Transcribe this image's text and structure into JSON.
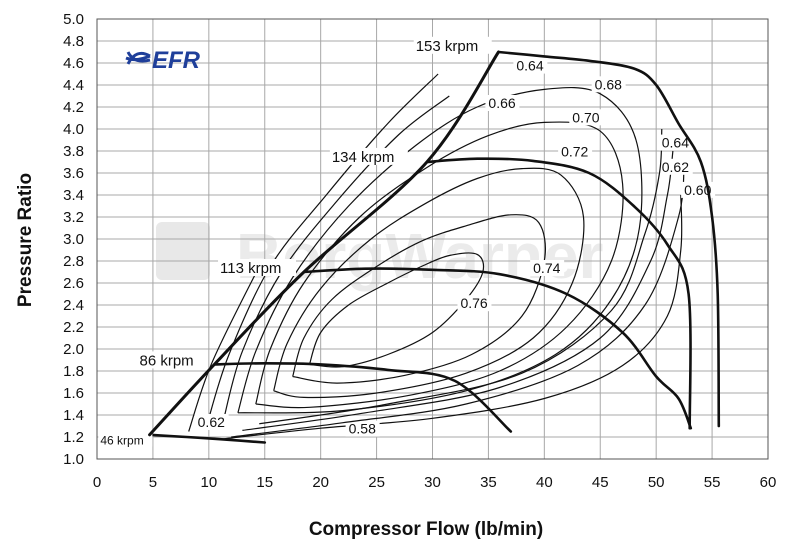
{
  "chart_data": {
    "type": "line",
    "title": "",
    "xlabel": "Compressor Flow (lb/min)",
    "ylabel": "Pressure Ratio",
    "xlim": [
      0,
      60
    ],
    "ylim": [
      1.0,
      5.0
    ],
    "x_ticks": [
      0,
      5,
      10,
      15,
      20,
      25,
      30,
      35,
      40,
      45,
      50,
      55,
      60
    ],
    "y_ticks": [
      1.0,
      1.2,
      1.4,
      1.6,
      1.8,
      2.0,
      2.2,
      2.4,
      2.6,
      2.8,
      3.0,
      3.2,
      3.4,
      3.6,
      3.8,
      4.0,
      4.2,
      4.4,
      4.6,
      4.8,
      5.0
    ],
    "grid": true,
    "logo_text": "EFR",
    "watermark_text": "BorgWarner",
    "surge_line": [
      [
        4.7,
        1.22
      ],
      [
        10.5,
        1.86
      ],
      [
        18.5,
        2.7
      ],
      [
        29.5,
        3.7
      ],
      [
        35.9,
        4.7
      ]
    ],
    "speed_lines": [
      {
        "label": "46 krpm",
        "label_x": 0.3,
        "label_y": 1.14,
        "points": [
          [
            4.7,
            1.22
          ],
          [
            8,
            1.2
          ],
          [
            11,
            1.18
          ],
          [
            15,
            1.15
          ]
        ]
      },
      {
        "label": "86 krpm",
        "label_x": 3.8,
        "label_y": 1.86,
        "points": [
          [
            10.5,
            1.86
          ],
          [
            15,
            1.87
          ],
          [
            20,
            1.86
          ],
          [
            26,
            1.81
          ],
          [
            32,
            1.71
          ],
          [
            37,
            1.25
          ]
        ]
      },
      {
        "label": "113 krpm",
        "label_x": 11,
        "label_y": 2.7,
        "points": [
          [
            18.5,
            2.7
          ],
          [
            24,
            2.73
          ],
          [
            30,
            2.72
          ],
          [
            36,
            2.68
          ],
          [
            42,
            2.5
          ],
          [
            47,
            2.15
          ],
          [
            50,
            1.75
          ],
          [
            52,
            1.55
          ],
          [
            53.1,
            1.28
          ]
        ]
      },
      {
        "label": "134 krpm",
        "label_x": 21,
        "label_y": 3.71,
        "points": [
          [
            29.5,
            3.7
          ],
          [
            34,
            3.73
          ],
          [
            39,
            3.71
          ],
          [
            44,
            3.6
          ],
          [
            48,
            3.3
          ],
          [
            51,
            2.95
          ],
          [
            52.9,
            2.5
          ],
          [
            53,
            1.28
          ]
        ]
      },
      {
        "label": "153 krpm",
        "label_x": 28.5,
        "label_y": 4.72,
        "points": [
          [
            35.9,
            4.7
          ],
          [
            40,
            4.66
          ],
          [
            44,
            4.62
          ],
          [
            48,
            4.55
          ],
          [
            50,
            4.4
          ],
          [
            52,
            4.05
          ],
          [
            54,
            3.7
          ],
          [
            55,
            3.2
          ],
          [
            55.5,
            2.5
          ],
          [
            55.6,
            1.3
          ]
        ]
      }
    ],
    "efficiency_islands": [
      {
        "label": "0.76",
        "label_x": 32.5,
        "label_y": 2.38,
        "points": [
          [
            19,
            1.86
          ],
          [
            20,
            2.15
          ],
          [
            22.5,
            2.4
          ],
          [
            26,
            2.6
          ],
          [
            29,
            2.75
          ],
          [
            31.5,
            2.85
          ],
          [
            34,
            2.86
          ],
          [
            34.5,
            2.7
          ],
          [
            33,
            2.45
          ],
          [
            30,
            2.15
          ],
          [
            26,
            1.95
          ],
          [
            22,
            1.84
          ],
          [
            19,
            1.86
          ]
        ]
      },
      {
        "label": "0.74",
        "label_x": 39,
        "label_y": 2.7,
        "points": [
          [
            17.5,
            1.75
          ],
          [
            18.5,
            2.1
          ],
          [
            21,
            2.45
          ],
          [
            25,
            2.75
          ],
          [
            29,
            2.98
          ],
          [
            33,
            3.12
          ],
          [
            37,
            3.22
          ],
          [
            39.5,
            3.15
          ],
          [
            40,
            2.8
          ],
          [
            38,
            2.3
          ],
          [
            33.5,
            1.95
          ],
          [
            27.5,
            1.76
          ],
          [
            21.5,
            1.69
          ],
          [
            17.5,
            1.75
          ]
        ]
      },
      {
        "label": "0.72",
        "label_x": 41.5,
        "label_y": 3.76,
        "points": [
          [
            15.8,
            1.62
          ],
          [
            17,
            2.05
          ],
          [
            20,
            2.55
          ],
          [
            24.5,
            3.0
          ],
          [
            29.5,
            3.33
          ],
          [
            34,
            3.55
          ],
          [
            38,
            3.64
          ],
          [
            41.5,
            3.58
          ],
          [
            43.5,
            3.2
          ],
          [
            42.5,
            2.6
          ],
          [
            39,
            2.1
          ],
          [
            33,
            1.78
          ],
          [
            25,
            1.6
          ],
          [
            18.5,
            1.56
          ],
          [
            15.8,
            1.62
          ]
        ]
      },
      {
        "label": "0.70",
        "label_x": 42.5,
        "label_y": 4.07,
        "points": [
          [
            14.2,
            1.5
          ],
          [
            15.5,
            2.0
          ],
          [
            18.5,
            2.6
          ],
          [
            23.5,
            3.2
          ],
          [
            29.5,
            3.65
          ],
          [
            35,
            3.94
          ],
          [
            40,
            4.06
          ],
          [
            45,
            3.98
          ],
          [
            47,
            3.5
          ],
          [
            46,
            2.8
          ],
          [
            42,
            2.2
          ],
          [
            36,
            1.8
          ],
          [
            28,
            1.58
          ],
          [
            19,
            1.47
          ],
          [
            14.2,
            1.5
          ]
        ]
      },
      {
        "label": "0.68",
        "label_x": 44.5,
        "label_y": 4.37,
        "points": [
          [
            12.6,
            1.42
          ],
          [
            14.2,
            1.98
          ],
          [
            17.5,
            2.65
          ],
          [
            22.5,
            3.3
          ],
          [
            28.5,
            3.85
          ],
          [
            34,
            4.2
          ],
          [
            40,
            4.36
          ],
          [
            45,
            4.32
          ],
          [
            48.2,
            3.9
          ],
          [
            48.5,
            3.1
          ],
          [
            46,
            2.45
          ],
          [
            41,
            1.95
          ],
          [
            33,
            1.62
          ],
          [
            22,
            1.44
          ],
          [
            12.6,
            1.42
          ]
        ]
      },
      {
        "label": "0.66",
        "label_x": 35,
        "label_y": 4.2,
        "points": [
          [
            11.3,
            1.35
          ],
          [
            13,
            1.98
          ],
          [
            16.5,
            2.7
          ],
          [
            21.5,
            3.35
          ],
          [
            27,
            3.95
          ],
          [
            31.5,
            4.3
          ]
        ]
      },
      {
        "label": "0.64",
        "label_x": 37.5,
        "label_y": 4.54,
        "points": [
          [
            9.8,
            1.3
          ],
          [
            11.8,
            1.95
          ],
          [
            15.5,
            2.75
          ],
          [
            20.5,
            3.4
          ],
          [
            26,
            4.05
          ],
          [
            30.5,
            4.5
          ]
        ]
      },
      {
        "label": "0.62",
        "label_x": 9,
        "label_y": 1.3,
        "points": [
          [
            8.2,
            1.25
          ],
          [
            10.3,
            1.88
          ],
          [
            14.5,
            2.75
          ]
        ]
      },
      {
        "label": "0.58",
        "label_x": 22.5,
        "label_y": 1.24,
        "points": [
          [
            11,
            1.18
          ],
          [
            20,
            1.28
          ],
          [
            30,
            1.37
          ],
          [
            40,
            1.55
          ],
          [
            47,
            1.85
          ],
          [
            51,
            2.3
          ],
          [
            52.2,
            2.9
          ],
          [
            52.2,
            3.4
          ]
        ]
      },
      {
        "label": "0.60",
        "label_x": 52.5,
        "label_y": 3.41,
        "points": [
          [
            12,
            1.2
          ],
          [
            22,
            1.33
          ],
          [
            33,
            1.5
          ],
          [
            43,
            1.85
          ],
          [
            49,
            2.4
          ],
          [
            52,
            3.2
          ],
          [
            52.5,
            3.7
          ]
        ]
      },
      {
        "label": "0.62",
        "label_x": 50.5,
        "label_y": 3.62,
        "points": [
          [
            13,
            1.26
          ],
          [
            24,
            1.42
          ],
          [
            36,
            1.65
          ],
          [
            45,
            2.1
          ],
          [
            49.5,
            2.8
          ],
          [
            51,
            3.4
          ],
          [
            51.5,
            3.8
          ]
        ]
      },
      {
        "label": "0.64",
        "label_x": 50.5,
        "label_y": 3.84,
        "points": [
          [
            14.5,
            1.32
          ],
          [
            26,
            1.5
          ],
          [
            38,
            1.78
          ],
          [
            46,
            2.35
          ],
          [
            49,
            3.05
          ],
          [
            50.3,
            3.6
          ],
          [
            50.5,
            4.0
          ]
        ]
      }
    ]
  }
}
